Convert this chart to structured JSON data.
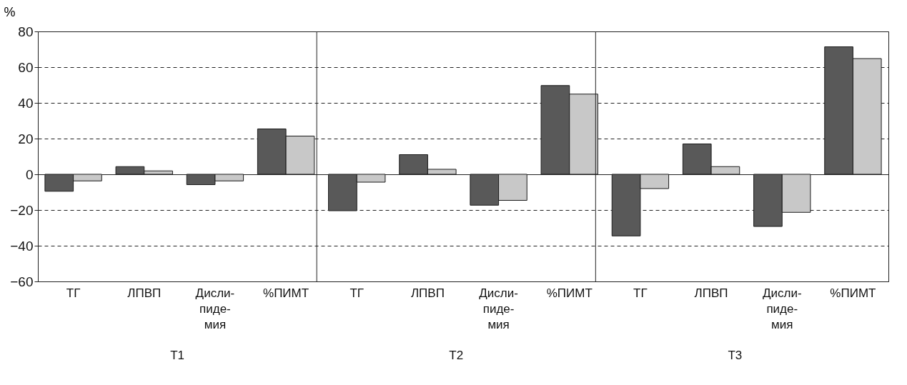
{
  "chart_data": {
    "type": "bar",
    "ylabel": "%",
    "categories": [
      "ТГ",
      "ЛПВП",
      "Дисли-\nпиде-\nмия",
      "%ПИМТ",
      "ТГ",
      "ЛПВП",
      "Дисли-\nпиде-\nмия",
      "%ПИМТ",
      "ТГ",
      "ЛПВП",
      "Дисли-\nпиде-\nмия",
      "%ПИМТ"
    ],
    "series": [
      {
        "color": "#595959",
        "values": [
          -9.5,
          4.3,
          -5.8,
          25.4,
          -20.4,
          11.0,
          -17.3,
          49.7,
          -34.5,
          17.0,
          -29.2,
          71.4
        ]
      },
      {
        "color": "#c8c8c8",
        "values": [
          -3.7,
          1.9,
          -3.7,
          21.4,
          -4.4,
          2.8,
          -14.6,
          44.9,
          -8.0,
          4.3,
          -21.3,
          64.8
        ]
      }
    ],
    "annotations": [
      "T1",
      "T2",
      "T3"
    ],
    "ylim": [
      -60,
      80
    ],
    "yticks": [
      -60,
      -40,
      -20,
      0,
      20,
      40,
      60,
      80
    ],
    "grid": "y",
    "legend": false
  }
}
